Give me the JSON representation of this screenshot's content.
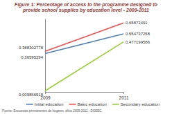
{
  "chart_data": {
    "type": "line",
    "title": "Figure 1: Percentage of access to the programme designed to provide school supplies by education level - 2009-2011",
    "categories": [
      "2009",
      "2011"
    ],
    "series": [
      {
        "name": "Initial education",
        "color": "#4a7ebb",
        "values": [
          0.36595294,
          0.554737258
        ]
      },
      {
        "name": "Basic education",
        "color": "#ff4a4a",
        "values": [
          0.388302778,
          0.65873491
        ]
      },
      {
        "name": "Secondary education",
        "color": "#9acd32",
        "values": [
          0.009866518,
          0.477199586
        ]
      }
    ],
    "ylim": [
      0,
      0.7
    ],
    "yticks": [],
    "tick_labels": "x",
    "data_labels": true,
    "legend": "bottom",
    "note": "Fuente: Encuestas permanentes de hogares, años 2009-2011 - DGEEC"
  }
}
